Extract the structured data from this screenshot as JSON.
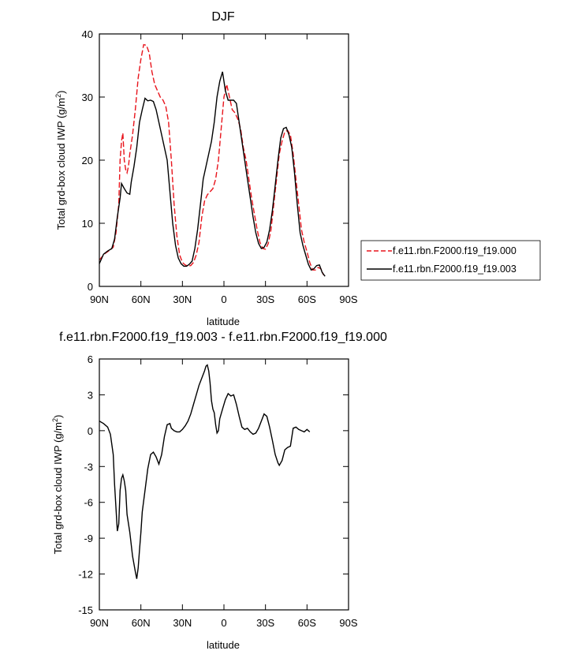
{
  "chart_data": [
    {
      "type": "line",
      "title": "DJF",
      "xlabel": "latitude",
      "ylabel": "Total grd-box cloud IWP (g/m",
      "ylabel_sup": "2",
      "ylabel_end": ")",
      "xlim": [
        90,
        -90
      ],
      "ylim": [
        0,
        40
      ],
      "xticks": [
        90,
        60,
        30,
        0,
        -30,
        -60,
        -90
      ],
      "xticklabels": [
        "90N",
        "60N",
        "30N",
        "0",
        "30S",
        "60S",
        "90S"
      ],
      "yticks": [
        0,
        10,
        20,
        30,
        40
      ],
      "yticklabels": [
        "0",
        "10",
        "20",
        "30",
        "40"
      ],
      "legend_position": "right",
      "series": [
        {
          "name": "f.e11.rbn.F2000.f19_f19.000",
          "color": "#e8141c",
          "dash": "dashed",
          "points": [
            [
              90,
              4.2
            ],
            [
              86,
              5.2
            ],
            [
              82,
              5.8
            ],
            [
              80,
              6.2
            ],
            [
              78,
              8.5
            ],
            [
              76,
              13
            ],
            [
              75,
              20
            ],
            [
              74,
              23
            ],
            [
              73,
              24.3
            ],
            [
              72,
              20
            ],
            [
              71,
              18.5
            ],
            [
              70,
              18
            ],
            [
              69,
              19
            ],
            [
              68,
              21
            ],
            [
              66,
              24
            ],
            [
              64,
              28
            ],
            [
              62,
              33
            ],
            [
              60,
              36
            ],
            [
              58,
              38.3
            ],
            [
              56,
              38.2
            ],
            [
              54,
              37
            ],
            [
              52,
              34
            ],
            [
              50,
              32
            ],
            [
              48,
              31
            ],
            [
              46,
              30
            ],
            [
              44,
              29.5
            ],
            [
              42,
              28.5
            ],
            [
              40,
              26
            ],
            [
              38,
              20
            ],
            [
              36,
              13
            ],
            [
              34,
              8
            ],
            [
              32,
              5
            ],
            [
              30,
              3.8
            ],
            [
              28,
              3.4
            ],
            [
              26,
              3.2
            ],
            [
              24,
              3.3
            ],
            [
              22,
              3.8
            ],
            [
              20,
              5
            ],
            [
              18,
              7
            ],
            [
              16,
              11
            ],
            [
              14,
              13.5
            ],
            [
              12,
              14.5
            ],
            [
              10,
              15
            ],
            [
              8,
              15.5
            ],
            [
              6,
              17
            ],
            [
              4,
              20
            ],
            [
              2,
              25
            ],
            [
              0,
              30
            ],
            [
              -2,
              32
            ],
            [
              -4,
              30
            ],
            [
              -6,
              28
            ],
            [
              -8,
              27.5
            ],
            [
              -10,
              26.5
            ],
            [
              -12,
              25
            ],
            [
              -14,
              22
            ],
            [
              -16,
              20
            ],
            [
              -18,
              17
            ],
            [
              -20,
              14
            ],
            [
              -22,
              11.5
            ],
            [
              -24,
              9
            ],
            [
              -26,
              7
            ],
            [
              -28,
              6
            ],
            [
              -30,
              5.9
            ],
            [
              -32,
              6.8
            ],
            [
              -34,
              9
            ],
            [
              -36,
              13
            ],
            [
              -38,
              17
            ],
            [
              -40,
              21
            ],
            [
              -42,
              23
            ],
            [
              -44,
              24.5
            ],
            [
              -46,
              24.7
            ],
            [
              -48,
              24
            ],
            [
              -50,
              21
            ],
            [
              -52,
              17
            ],
            [
              -54,
              13
            ],
            [
              -56,
              9
            ],
            [
              -58,
              7
            ],
            [
              -60,
              5.5
            ],
            [
              -62,
              3.8
            ],
            [
              -64,
              2.6
            ],
            [
              -66,
              2.6
            ],
            [
              -68,
              3
            ],
            [
              -70,
              2.8
            ],
            [
              -72,
              1.8
            ]
          ]
        },
        {
          "name": "f.e11.rbn.F2000.f19_f19.003",
          "color": "#000000",
          "dash": "solid",
          "points": [
            [
              90,
              3.6
            ],
            [
              87,
              5.1
            ],
            [
              84,
              5.6
            ],
            [
              81,
              6
            ],
            [
              79,
              7.5
            ],
            [
              77,
              11
            ],
            [
              75,
              14
            ],
            [
              74,
              16.3
            ],
            [
              72,
              15.5
            ],
            [
              70,
              14.8
            ],
            [
              68,
              14.6
            ],
            [
              67,
              16.5
            ],
            [
              65,
              19
            ],
            [
              63,
              22
            ],
            [
              61,
              26
            ],
            [
              59,
              28
            ],
            [
              57,
              29.8
            ],
            [
              55,
              29.4
            ],
            [
              53,
              29.5
            ],
            [
              51,
              29.3
            ],
            [
              49,
              28
            ],
            [
              47,
              26
            ],
            [
              45,
              24
            ],
            [
              43,
              22
            ],
            [
              41,
              20
            ],
            [
              39,
              15
            ],
            [
              37,
              10
            ],
            [
              35,
              6.5
            ],
            [
              33,
              4.5
            ],
            [
              31,
              3.6
            ],
            [
              29,
              3.2
            ],
            [
              27,
              3.2
            ],
            [
              25,
              3.5
            ],
            [
              23,
              4
            ],
            [
              21,
              6
            ],
            [
              19,
              9
            ],
            [
              17,
              13
            ],
            [
              15,
              17
            ],
            [
              13,
              19
            ],
            [
              11,
              21
            ],
            [
              9,
              23
            ],
            [
              7,
              26
            ],
            [
              5,
              30
            ],
            [
              3,
              32.5
            ],
            [
              1,
              34
            ],
            [
              -1,
              31
            ],
            [
              -3,
              29.5
            ],
            [
              -5,
              29.5
            ],
            [
              -7,
              29.5
            ],
            [
              -9,
              29
            ],
            [
              -11,
              26
            ],
            [
              -13,
              23
            ],
            [
              -15,
              20
            ],
            [
              -17,
              17
            ],
            [
              -19,
              14
            ],
            [
              -21,
              11
            ],
            [
              -23,
              8.5
            ],
            [
              -25,
              6.8
            ],
            [
              -27,
              6
            ],
            [
              -29,
              6.2
            ],
            [
              -31,
              7
            ],
            [
              -33,
              9
            ],
            [
              -35,
              12
            ],
            [
              -37,
              16
            ],
            [
              -39,
              20
            ],
            [
              -41,
              23.5
            ],
            [
              -43,
              25
            ],
            [
              -45,
              25.2
            ],
            [
              -47,
              24
            ],
            [
              -49,
              22
            ],
            [
              -51,
              18
            ],
            [
              -53,
              13
            ],
            [
              -55,
              8.5
            ],
            [
              -57,
              6.5
            ],
            [
              -59,
              5
            ],
            [
              -61,
              3.5
            ],
            [
              -63,
              2.6
            ],
            [
              -65,
              2.8
            ],
            [
              -67,
              3.3
            ],
            [
              -69,
              3.4
            ],
            [
              -71,
              2.2
            ],
            [
              -73,
              1.6
            ]
          ]
        }
      ]
    },
    {
      "type": "line",
      "title": "f.e11.rbn.F2000.f19_f19.003 - f.e11.rbn.F2000.f19_f19.000",
      "xlabel": "latitude",
      "ylabel": "Total grd-box cloud IWP (g/m",
      "ylabel_sup": "2",
      "ylabel_end": ")",
      "xlim": [
        90,
        -90
      ],
      "ylim": [
        -15,
        6
      ],
      "xticks": [
        90,
        60,
        30,
        0,
        -30,
        -60,
        -90
      ],
      "xticklabels": [
        "90N",
        "60N",
        "30N",
        "0",
        "30S",
        "60S",
        "90S"
      ],
      "yticks": [
        -15,
        -12,
        -9,
        -6,
        -3,
        0,
        3,
        6
      ],
      "yticklabels": [
        "-15",
        "-12",
        "-9",
        "-6",
        "-3",
        "0",
        "3",
        "6"
      ],
      "series": [
        {
          "color": "#000000",
          "dash": "solid",
          "points": [
            [
              90,
              0.8
            ],
            [
              87,
              0.6
            ],
            [
              84,
              0.3
            ],
            [
              82,
              -0.3
            ],
            [
              80,
              -2
            ],
            [
              79,
              -4.5
            ],
            [
              78,
              -6.5
            ],
            [
              77,
              -8.4
            ],
            [
              76,
              -7.8
            ],
            [
              75,
              -5
            ],
            [
              74,
              -4
            ],
            [
              73,
              -3.7
            ],
            [
              72,
              -4.2
            ],
            [
              71,
              -5
            ],
            [
              70,
              -7
            ],
            [
              68,
              -8.5
            ],
            [
              66,
              -10.5
            ],
            [
              64,
              -11.8
            ],
            [
              63,
              -12.4
            ],
            [
              62,
              -11.5
            ],
            [
              61,
              -10
            ],
            [
              60,
              -8.5
            ],
            [
              59,
              -6.8
            ],
            [
              57,
              -5
            ],
            [
              55,
              -3.2
            ],
            [
              53,
              -2
            ],
            [
              51,
              -1.8
            ],
            [
              49,
              -2.2
            ],
            [
              47,
              -2.8
            ],
            [
              45,
              -2
            ],
            [
              43,
              -0.5
            ],
            [
              41,
              0.5
            ],
            [
              39,
              0.6
            ],
            [
              38,
              0.2
            ],
            [
              36,
              0
            ],
            [
              34,
              -0.1
            ],
            [
              32,
              -0.1
            ],
            [
              30,
              0.1
            ],
            [
              28,
              0.4
            ],
            [
              26,
              0.8
            ],
            [
              24,
              1.4
            ],
            [
              22,
              2.2
            ],
            [
              20,
              3
            ],
            [
              18,
              3.8
            ],
            [
              16,
              4.4
            ],
            [
              14,
              5
            ],
            [
              13,
              5.4
            ],
            [
              12,
              5.5
            ],
            [
              11,
              5
            ],
            [
              10,
              4
            ],
            [
              9,
              2.5
            ],
            [
              8,
              1.8
            ],
            [
              7,
              1.5
            ],
            [
              6,
              0.5
            ],
            [
              5,
              -0.2
            ],
            [
              4,
              0
            ],
            [
              3,
              1
            ],
            [
              1,
              1.8
            ],
            [
              -1,
              2.6
            ],
            [
              -3,
              3.1
            ],
            [
              -5,
              2.9
            ],
            [
              -7,
              3
            ],
            [
              -9,
              2.2
            ],
            [
              -11,
              1.2
            ],
            [
              -13,
              0.3
            ],
            [
              -15,
              0.1
            ],
            [
              -17,
              0.2
            ],
            [
              -19,
              -0.1
            ],
            [
              -21,
              -0.3
            ],
            [
              -23,
              -0.2
            ],
            [
              -25,
              0.2
            ],
            [
              -27,
              0.8
            ],
            [
              -29,
              1.4
            ],
            [
              -31,
              1.2
            ],
            [
              -33,
              0.3
            ],
            [
              -35,
              -0.8
            ],
            [
              -37,
              -2
            ],
            [
              -39,
              -2.7
            ],
            [
              -40,
              -2.9
            ],
            [
              -42,
              -2.5
            ],
            [
              -44,
              -1.6
            ],
            [
              -46,
              -1.4
            ],
            [
              -48,
              -1.3
            ],
            [
              -50,
              0.2
            ],
            [
              -52,
              0.3
            ],
            [
              -54,
              0.1
            ],
            [
              -56,
              0
            ],
            [
              -58,
              -0.1
            ],
            [
              -60,
              0.1
            ],
            [
              -62,
              -0.1
            ]
          ]
        }
      ]
    }
  ]
}
